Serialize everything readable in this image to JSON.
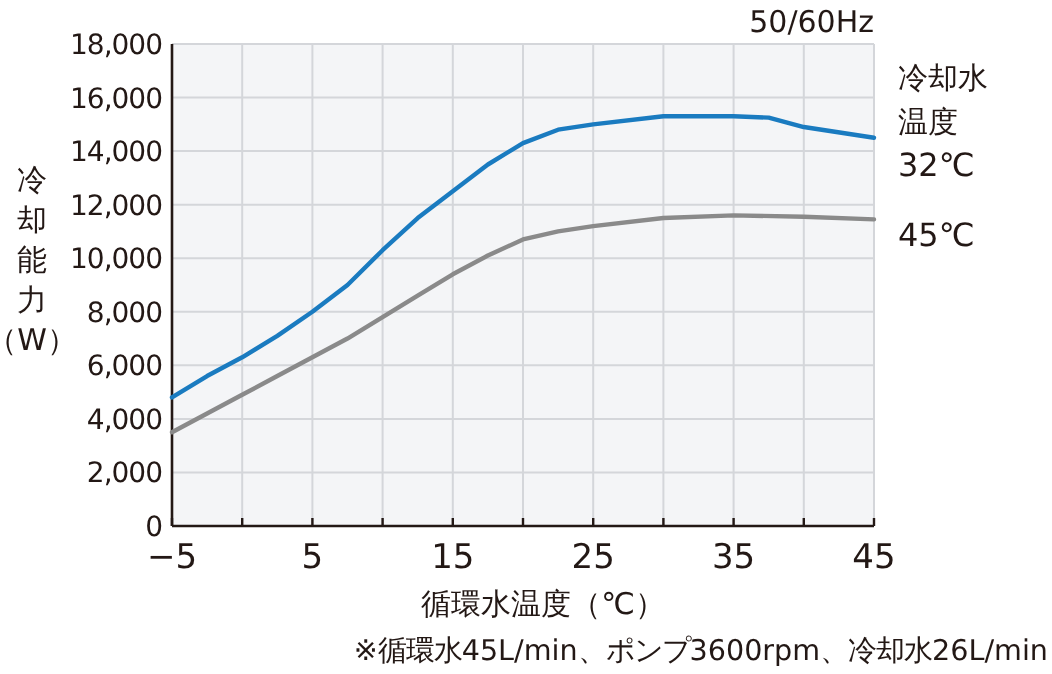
{
  "chart_data": {
    "type": "line",
    "title": "50/60Hz",
    "xlabel": "循環水温度（℃）",
    "ylabel": "冷却能力（W）",
    "legend_title": "冷却水温度",
    "xlim": [
      -5,
      45
    ],
    "xticks": [
      -5,
      {
        "value": 0,
        "label": null
      },
      5,
      {
        "value": 10,
        "label": null
      },
      15,
      {
        "value": 20,
        "label": null
      },
      25,
      {
        "value": 30,
        "label": null
      },
      35,
      {
        "value": 40,
        "label": null
      },
      45
    ],
    "ylim": [
      0,
      18000
    ],
    "yticks": [
      0,
      {
        "value": 2000,
        "label": "2,000"
      },
      {
        "value": 4000,
        "label": "4,000"
      },
      {
        "value": 6000,
        "label": "6,000"
      },
      {
        "value": 8000,
        "label": "8,000"
      },
      {
        "value": 10000,
        "label": "10,000"
      },
      {
        "value": 12000,
        "label": "12,000"
      },
      {
        "value": 14000,
        "label": "14,000"
      },
      {
        "value": 16000,
        "label": "16,000"
      },
      {
        "value": 18000,
        "label": "18,000"
      }
    ],
    "grid": true,
    "legend": "right",
    "line_style": "solid",
    "marker": "none",
    "series": [
      {
        "name": "32℃",
        "color": "#1a7bc0",
        "x": [
          -5,
          -2.5,
          0,
          2.5,
          5,
          7.5,
          10,
          12.5,
          15,
          17.5,
          20,
          22.5,
          25,
          30,
          35,
          37.5,
          40,
          45
        ],
        "values": [
          4800,
          5600,
          6300,
          7100,
          8000,
          9000,
          10300,
          11500,
          12500,
          13500,
          14300,
          14800,
          15000,
          15300,
          15300,
          15250,
          14900,
          14500
        ]
      },
      {
        "name": "45℃",
        "color": "#8a8a8a",
        "x": [
          -5,
          -2.5,
          0,
          2.5,
          5,
          7.5,
          10,
          12.5,
          15,
          17.5,
          20,
          22.5,
          25,
          30,
          35,
          40,
          45
        ],
        "values": [
          3500,
          4200,
          4900,
          5600,
          6300,
          7000,
          7800,
          8600,
          9400,
          10100,
          10700,
          11000,
          11200,
          11500,
          11600,
          11550,
          11450
        ]
      }
    ],
    "annotations": [
      "※循環水45L/min、ポンプ3600rpm、冷却水26L/min"
    ]
  }
}
